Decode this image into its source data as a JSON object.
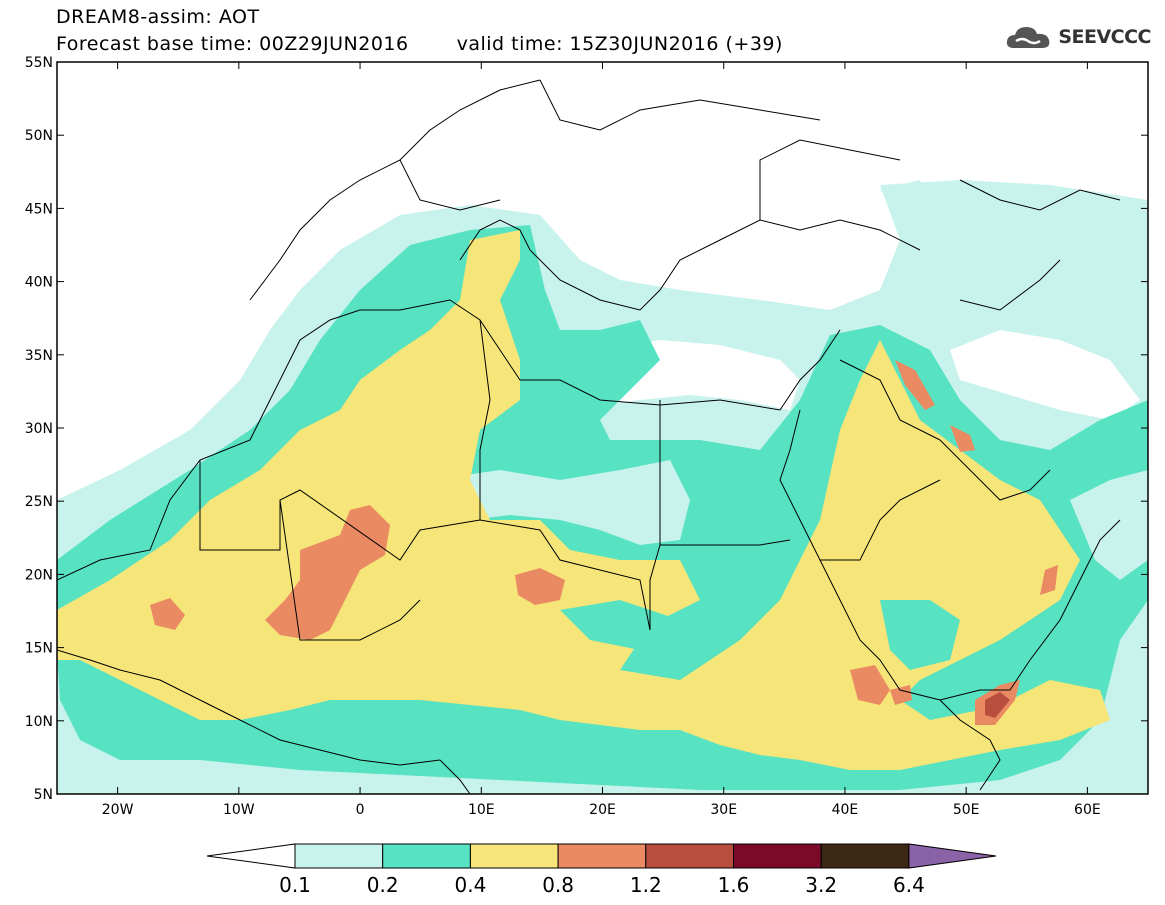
{
  "title": {
    "line1": "DREAM8-assim: AOT",
    "base_time": "Forecast base time: 00Z29JUN2016",
    "valid_time": "valid time: 15Z30JUN2016 (+39)"
  },
  "logo": {
    "text": "SEEVCCC",
    "icon": "cloud-icon"
  },
  "map": {
    "lon_range": [
      -25,
      65
    ],
    "lat_range": [
      5,
      55
    ],
    "lat_ticks": [
      "5N",
      "10N",
      "15N",
      "20N",
      "25N",
      "30N",
      "35N",
      "40N",
      "45N",
      "50N",
      "55N"
    ],
    "lon_ticks": [
      "20W",
      "10W",
      "0",
      "10E",
      "20E",
      "30E",
      "40E",
      "50E",
      "60E"
    ]
  },
  "legend": {
    "labels": [
      "0.1",
      "0.2",
      "0.4",
      "0.8",
      "1.2",
      "1.6",
      "3.2",
      "6.4"
    ],
    "colors": [
      "#ffffff",
      "#c8f2ec",
      "#57e2c2",
      "#f6e579",
      "#ea8a62",
      "#b84e3e",
      "#7a0a28",
      "#3d2816",
      "#8a62a8"
    ]
  }
}
